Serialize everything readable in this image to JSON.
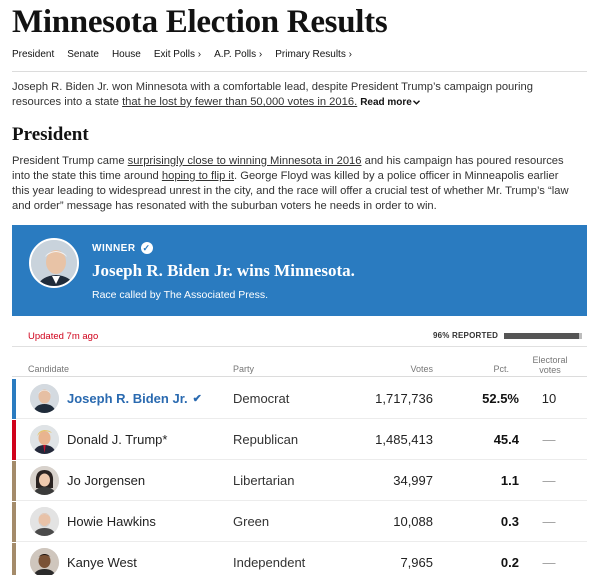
{
  "page": {
    "title": "Minnesota Election Results"
  },
  "nav": {
    "items": [
      "President",
      "Senate",
      "House",
      "Exit Polls ›",
      "A.P. Polls ›",
      "Primary Results ›"
    ]
  },
  "intro": {
    "text_before": "Joseph R. Biden Jr. won Minnesota with a comfortable lead, despite President Trump’s campaign pouring resources into a state ",
    "link": "that he lost by fewer than 50,000 votes in 2016.",
    "read_more": "Read more",
    "read_more_icon": "chevron-down-icon"
  },
  "section": {
    "heading": "President",
    "text_1": "President Trump came ",
    "link_1": "surprisingly close to winning Minnesota in 2016",
    "text_2": " and his campaign has poured resources into the state this time around ",
    "link_2": "hoping to flip it",
    "text_3": ". George Floyd was killed by a police officer in Minneapolis earlier this year leading to widespread unrest in the city, and the race will offer a crucial test of whether Mr. Trump’s “law and order” message has resonated with the suburban voters he needs in order to win."
  },
  "banner": {
    "label": "WINNER",
    "check_icon": "check-badge-icon",
    "headline": "Joseph R. Biden Jr. wins Minnesota.",
    "called_by": "Race called by The Associated Press.",
    "color": "#2a7bc0"
  },
  "status": {
    "updated": "Updated 7m ago",
    "reported_label": "96% REPORTED",
    "reported_fraction": 0.96
  },
  "table": {
    "headers": {
      "candidate": "Candidate",
      "party": "Party",
      "votes": "Votes",
      "pct": "Pct.",
      "ev": "Electoral votes"
    },
    "rows": [
      {
        "name": "Joseph R. Biden Jr.",
        "winner": true,
        "party": "Democrat",
        "votes": "1,717,736",
        "pct": "52.5%",
        "ev": "10",
        "color": "#2a7bc0"
      },
      {
        "name": "Donald J. Trump*",
        "winner": false,
        "party": "Republican",
        "votes": "1,485,413",
        "pct": "45.4",
        "ev": "—",
        "color": "#d0021b"
      },
      {
        "name": "Jo Jorgensen",
        "winner": false,
        "party": "Libertarian",
        "votes": "34,997",
        "pct": "1.1",
        "ev": "—",
        "color": "#a48b6a"
      },
      {
        "name": "Howie Hawkins",
        "winner": false,
        "party": "Green",
        "votes": "10,088",
        "pct": "0.3",
        "ev": "—",
        "color": "#a48b6a"
      },
      {
        "name": "Kanye West",
        "winner": false,
        "party": "Independent",
        "votes": "7,965",
        "pct": "0.2",
        "ev": "—",
        "color": "#a48b6a"
      }
    ]
  }
}
